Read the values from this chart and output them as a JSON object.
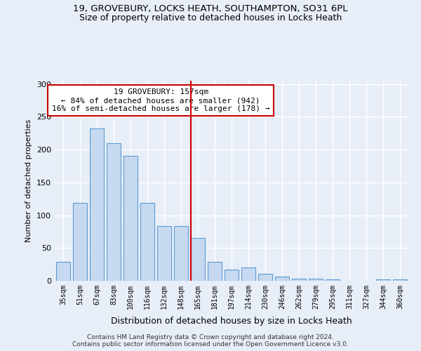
{
  "title1": "19, GROVEBURY, LOCKS HEATH, SOUTHAMPTON, SO31 6PL",
  "title2": "Size of property relative to detached houses in Locks Heath",
  "xlabel": "Distribution of detached houses by size in Locks Heath",
  "ylabel": "Number of detached properties",
  "footer1": "Contains HM Land Registry data © Crown copyright and database right 2024.",
  "footer2": "Contains public sector information licensed under the Open Government Licence v3.0.",
  "categories": [
    "35sqm",
    "51sqm",
    "67sqm",
    "83sqm",
    "100sqm",
    "116sqm",
    "132sqm",
    "148sqm",
    "165sqm",
    "181sqm",
    "197sqm",
    "214sqm",
    "230sqm",
    "246sqm",
    "262sqm",
    "279sqm",
    "295sqm",
    "311sqm",
    "327sqm",
    "344sqm",
    "360sqm"
  ],
  "values": [
    29,
    119,
    232,
    210,
    190,
    119,
    83,
    83,
    65,
    29,
    17,
    20,
    11,
    6,
    3,
    3,
    2,
    0,
    0,
    2,
    2
  ],
  "bar_color": "#c6d9f0",
  "bar_edge_color": "#5b9bd5",
  "annotation_text": "19 GROVEBURY: 157sqm\n← 84% of detached houses are smaller (942)\n16% of semi-detached houses are larger (178) →",
  "annotation_box_color": "#ffffff",
  "annotation_box_edge": "#cc0000",
  "vline_color": "#cc0000",
  "vline_x": 7.6,
  "ylim": [
    0,
    305
  ],
  "yticks": [
    0,
    50,
    100,
    150,
    200,
    250,
    300
  ],
  "background_color": "#e8eef8",
  "grid_color": "#ffffff"
}
